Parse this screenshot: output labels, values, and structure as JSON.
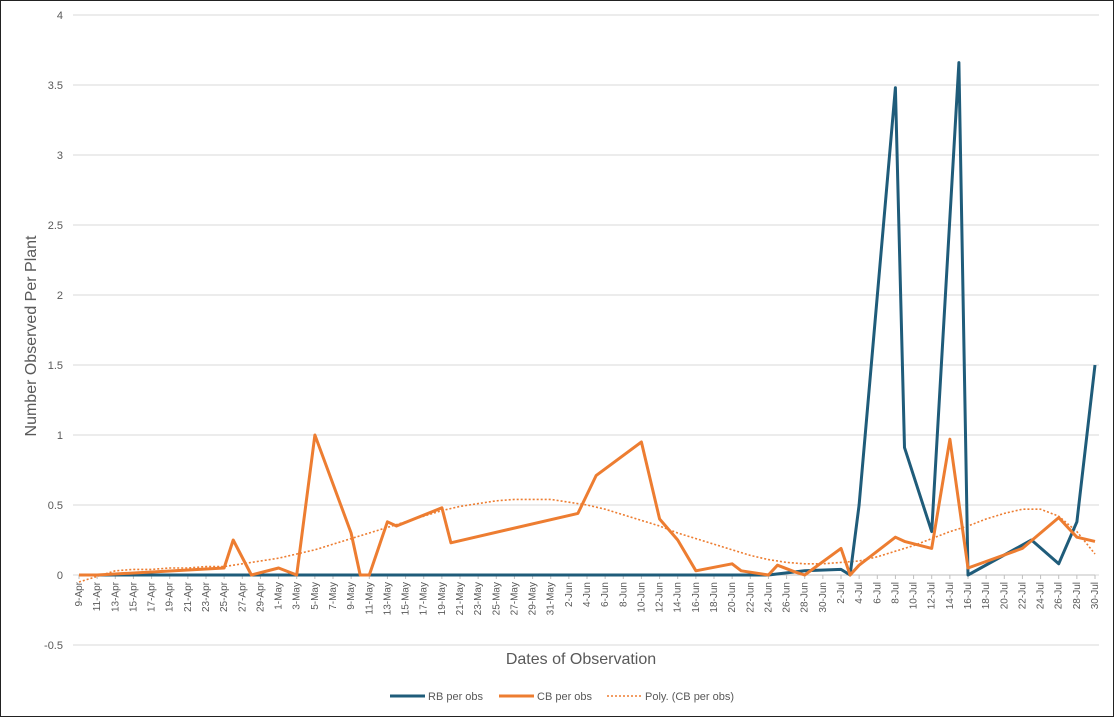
{
  "chart_data": {
    "type": "line",
    "title": "",
    "xlabel": "Dates of Observation",
    "ylabel": "Number Observed Per Plant",
    "ylim": [
      -0.5,
      4
    ],
    "yticks": [
      -0.5,
      0,
      0.5,
      1,
      1.5,
      2,
      2.5,
      3,
      3.5,
      4
    ],
    "ytick_labels": [
      "-0.5",
      "0",
      "0.5",
      "1",
      "1.5",
      "2",
      "2.5",
      "3",
      "3.5",
      "4"
    ],
    "xlim": [
      "9-Apr",
      "30-Jul"
    ],
    "xtick_labels": [
      "9-Apr",
      "11-Apr",
      "13-Apr",
      "15-Apr",
      "17-Apr",
      "19-Apr",
      "21-Apr",
      "23-Apr",
      "25-Apr",
      "27-Apr",
      "29-Apr",
      "1-May",
      "3-May",
      "5-May",
      "7-May",
      "9-May",
      "11-May",
      "13-May",
      "15-May",
      "17-May",
      "19-May",
      "21-May",
      "23-May",
      "25-May",
      "27-May",
      "29-May",
      "31-May",
      "2-Jun",
      "4-Jun",
      "6-Jun",
      "8-Jun",
      "10-Jun",
      "12-Jun",
      "14-Jun",
      "16-Jun",
      "18-Jun",
      "20-Jun",
      "22-Jun",
      "24-Jun",
      "26-Jun",
      "28-Jun",
      "30-Jun",
      "2-Jul",
      "4-Jul",
      "6-Jul",
      "8-Jul",
      "10-Jul",
      "12-Jul",
      "14-Jul",
      "16-Jul",
      "18-Jul",
      "20-Jul",
      "22-Jul",
      "24-Jul",
      "26-Jul",
      "28-Jul",
      "30-Jul"
    ],
    "grid": true,
    "legend_position": "bottom",
    "colors": {
      "rb": "#1f5c7a",
      "cb": "#ed7d31",
      "grid": "#d9d9d9",
      "text": "#595959"
    },
    "series": [
      {
        "name": "RB per obs",
        "style": "solid",
        "points": [
          [
            "9-Apr",
            0
          ],
          [
            "25-Apr",
            0
          ],
          [
            "4-Jun",
            0
          ],
          [
            "24-Jun",
            0
          ],
          [
            "28-Jun",
            0.03
          ],
          [
            "2-Jul",
            0.04
          ],
          [
            "3-Jul",
            0
          ],
          [
            "4-Jul",
            0.5
          ],
          [
            "8-Jul",
            3.48
          ],
          [
            "9-Jul",
            0.91
          ],
          [
            "12-Jul",
            0.31
          ],
          [
            "15-Jul",
            3.66
          ],
          [
            "16-Jul",
            0
          ],
          [
            "23-Jul",
            0.25
          ],
          [
            "26-Jul",
            0.08
          ],
          [
            "28-Jul",
            0.38
          ],
          [
            "30-Jul",
            1.5
          ]
        ]
      },
      {
        "name": "CB per obs",
        "style": "solid",
        "points": [
          [
            "9-Apr",
            0
          ],
          [
            "11-Apr",
            0
          ],
          [
            "25-Apr",
            0.05
          ],
          [
            "26-Apr",
            0.25
          ],
          [
            "28-Apr",
            0
          ],
          [
            "1-May",
            0.05
          ],
          [
            "3-May",
            0
          ],
          [
            "5-May",
            1.0
          ],
          [
            "9-May",
            0.3
          ],
          [
            "10-May",
            0
          ],
          [
            "11-May",
            0
          ],
          [
            "13-May",
            0.38
          ],
          [
            "14-May",
            0.35
          ],
          [
            "19-May",
            0.48
          ],
          [
            "20-May",
            0.23
          ],
          [
            "3-Jun",
            0.44
          ],
          [
            "5-Jun",
            0.71
          ],
          [
            "10-Jun",
            0.95
          ],
          [
            "12-Jun",
            0.4
          ],
          [
            "14-Jun",
            0.25
          ],
          [
            "16-Jun",
            0.03
          ],
          [
            "20-Jun",
            0.08
          ],
          [
            "21-Jun",
            0.03
          ],
          [
            "24-Jun",
            0
          ],
          [
            "25-Jun",
            0.07
          ],
          [
            "27-Jun",
            0.02
          ],
          [
            "28-Jun",
            0
          ],
          [
            "2-Jul",
            0.19
          ],
          [
            "3-Jul",
            0
          ],
          [
            "4-Jul",
            0.07
          ],
          [
            "8-Jul",
            0.27
          ],
          [
            "9-Jul",
            0.24
          ],
          [
            "12-Jul",
            0.19
          ],
          [
            "14-Jul",
            0.97
          ],
          [
            "16-Jul",
            0.05
          ],
          [
            "22-Jul",
            0.19
          ],
          [
            "26-Jul",
            0.41
          ],
          [
            "28-Jul",
            0.27
          ],
          [
            "30-Jul",
            0.24
          ]
        ]
      },
      {
        "name": "Poly. (CB per obs)",
        "style": "dotted",
        "points": [
          [
            "9-Apr",
            -0.05
          ],
          [
            "11-Apr",
            -0.01
          ],
          [
            "13-Apr",
            0.03
          ],
          [
            "15-Apr",
            0.04
          ],
          [
            "17-Apr",
            0.04
          ],
          [
            "19-Apr",
            0.05
          ],
          [
            "21-Apr",
            0.05
          ],
          [
            "23-Apr",
            0.06
          ],
          [
            "25-Apr",
            0.06
          ],
          [
            "27-Apr",
            0.08
          ],
          [
            "29-Apr",
            0.1
          ],
          [
            "1-May",
            0.12
          ],
          [
            "3-May",
            0.15
          ],
          [
            "5-May",
            0.18
          ],
          [
            "7-May",
            0.22
          ],
          [
            "9-May",
            0.26
          ],
          [
            "11-May",
            0.3
          ],
          [
            "13-May",
            0.34
          ],
          [
            "15-May",
            0.38
          ],
          [
            "17-May",
            0.42
          ],
          [
            "19-May",
            0.46
          ],
          [
            "21-May",
            0.49
          ],
          [
            "23-May",
            0.51
          ],
          [
            "25-May",
            0.53
          ],
          [
            "27-May",
            0.54
          ],
          [
            "29-May",
            0.54
          ],
          [
            "31-May",
            0.54
          ],
          [
            "2-Jun",
            0.52
          ],
          [
            "4-Jun",
            0.5
          ],
          [
            "6-Jun",
            0.47
          ],
          [
            "8-Jun",
            0.43
          ],
          [
            "10-Jun",
            0.39
          ],
          [
            "12-Jun",
            0.35
          ],
          [
            "14-Jun",
            0.3
          ],
          [
            "16-Jun",
            0.26
          ],
          [
            "18-Jun",
            0.22
          ],
          [
            "20-Jun",
            0.18
          ],
          [
            "22-Jun",
            0.14
          ],
          [
            "24-Jun",
            0.11
          ],
          [
            "26-Jun",
            0.09
          ],
          [
            "28-Jun",
            0.08
          ],
          [
            "30-Jun",
            0.08
          ],
          [
            "2-Jul",
            0.09
          ],
          [
            "4-Jul",
            0.1
          ],
          [
            "6-Jul",
            0.13
          ],
          [
            "8-Jul",
            0.17
          ],
          [
            "10-Jul",
            0.21
          ],
          [
            "12-Jul",
            0.26
          ],
          [
            "14-Jul",
            0.31
          ],
          [
            "16-Jul",
            0.35
          ],
          [
            "18-Jul",
            0.4
          ],
          [
            "20-Jul",
            0.44
          ],
          [
            "22-Jul",
            0.47
          ],
          [
            "24-Jul",
            0.47
          ],
          [
            "26-Jul",
            0.42
          ],
          [
            "28-Jul",
            0.31
          ],
          [
            "30-Jul",
            0.15
          ]
        ]
      }
    ]
  }
}
